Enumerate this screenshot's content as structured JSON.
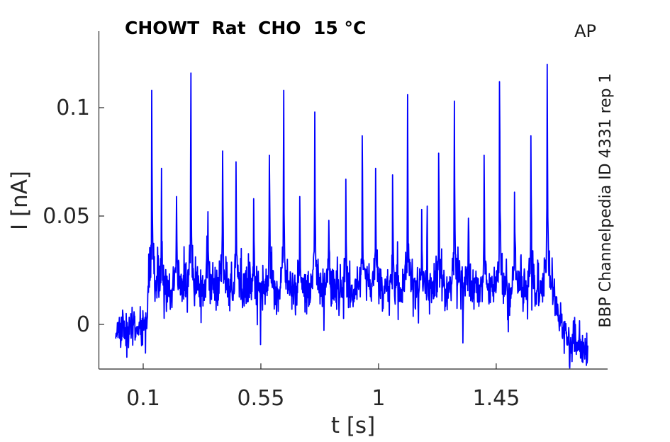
{
  "figure": {
    "background": "#ffffff"
  },
  "chart_data": {
    "type": "line",
    "title": "CHOWT  Rat  CHO  15 °C",
    "top_right_label": "AP",
    "right_side_label": "BBP Channelpedia ID 4331 rep 1",
    "xlabel": "t [s]",
    "ylabel": "I [nA]",
    "x_ticks": [
      0.1,
      0.55,
      1,
      1.45
    ],
    "x_tick_labels": [
      "0.1",
      "0.55",
      "1",
      "1.45"
    ],
    "y_ticks": [
      0,
      0.05,
      0.1
    ],
    "y_tick_labels": [
      "0",
      "0.05",
      "0.1"
    ],
    "xlim": [
      -0.0694,
      1.876
    ],
    "ylim": [
      -0.0206,
      0.1353
    ],
    "grid": false,
    "legend": "none",
    "axis_color": "#262626",
    "series": [
      {
        "name": "membrane current trace",
        "color": "#0000FF",
        "line_width": 1.8,
        "t_range_s": [
          -0.005,
          1.8
        ],
        "sample_dt_s": 0.00125,
        "noise_seed": 11,
        "segments": [
          {
            "t0": -0.005,
            "t1": 0.113,
            "mean0": -0.002,
            "mean1": -0.002,
            "sd": 0.0038
          },
          {
            "t0": 0.113,
            "t1": 0.119,
            "mean0": -0.002,
            "mean1": 0.016,
            "sd": 0.004
          },
          {
            "t0": 0.119,
            "t1": 1.66,
            "mean0": 0.016,
            "mean1": 0.016,
            "sd": 0.005
          },
          {
            "t0": 1.66,
            "t1": 1.724,
            "mean0": 0.016,
            "mean1": -0.007,
            "sd": 0.0045
          },
          {
            "t0": 1.724,
            "t1": 1.801,
            "mean0": -0.007,
            "mean1": -0.0125,
            "sd": 0.004
          }
        ],
        "stim_mean_nA": 0.016,
        "spikes_t_s": [
          0.133,
          0.17,
          0.227,
          0.282,
          0.347,
          0.404,
          0.455,
          0.523,
          0.583,
          0.637,
          0.699,
          0.756,
          0.81,
          0.875,
          0.938,
          0.989,
          1.054,
          1.111,
          1.165,
          1.23,
          1.29,
          1.344,
          1.404,
          1.463,
          1.52,
          1.583,
          1.645
        ],
        "spikes_peak_nA": [
          0.108,
          0.072,
          0.059,
          0.116,
          0.052,
          0.08,
          0.075,
          0.058,
          0.078,
          0.108,
          0.059,
          0.098,
          0.048,
          0.067,
          0.087,
          0.072,
          0.069,
          0.106,
          0.053,
          0.079,
          0.103,
          0.049,
          0.078,
          0.112,
          0.061,
          0.087,
          0.12
        ]
      }
    ]
  }
}
